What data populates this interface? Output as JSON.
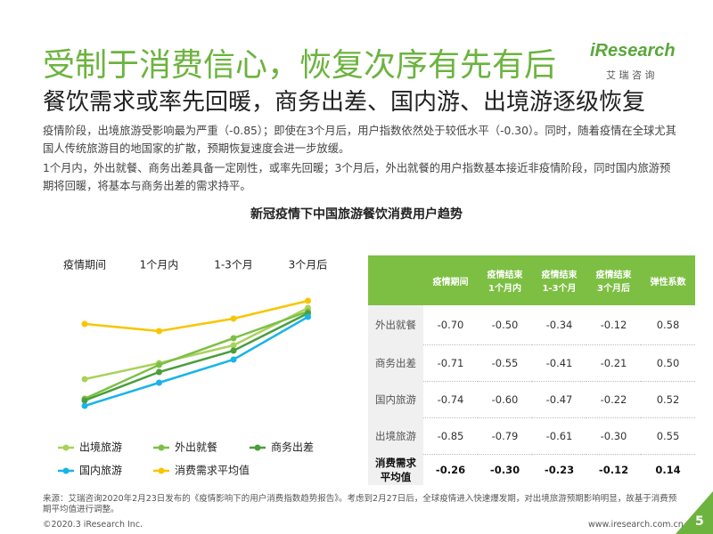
{
  "header": {
    "title": "受制于消费信心，恢复次序有先有后",
    "subtitle": "餐饮需求或率先回暖，商务出差、国内游、出境游逐级恢复",
    "logo": "iResearch",
    "logo_sub": "艾 瑞 咨 询"
  },
  "body": [
    "疫情阶段，出境旅游受影响最为严重（-0.85）；即使在3个月后，用户指数依然处于较低水平（-0.30）。同时，随着疫情在全球尤其国人传统旅游目的地国家的扩散，预期恢复速度会进一步放缓。",
    "1个月内，外出就餐、商务出差具备一定刚性，或率先回暖；3个月后，外出就餐的用户指数基本接近非疫情阶段，同时国内旅游预期将回暖，将基本与商务出差的需求持平。"
  ],
  "chart_data": {
    "type": "line",
    "title": "新冠疫情下中国旅游餐饮消费用户趋势",
    "categories": [
      "疫情期间",
      "1个月内",
      "1-3个月",
      "3个月后"
    ],
    "ylim": [
      -0.8,
      -0.05
    ],
    "series": [
      {
        "name": "出境旅游",
        "color": "#a9d25c",
        "values": [
          -0.56,
          -0.47,
          -0.37,
          -0.16
        ]
      },
      {
        "name": "外出就餐",
        "color": "#7cbf45",
        "values": [
          -0.67,
          -0.48,
          -0.33,
          -0.18
        ]
      },
      {
        "name": "商务出差",
        "color": "#4a9e3c",
        "values": [
          -0.68,
          -0.52,
          -0.4,
          -0.19
        ]
      },
      {
        "name": "国内旅游",
        "color": "#19b4e8",
        "values": [
          -0.71,
          -0.58,
          -0.45,
          -0.21
        ]
      },
      {
        "name": "消费需求平均值",
        "color": "#f7c600",
        "values": [
          -0.25,
          -0.29,
          -0.22,
          -0.12
        ]
      }
    ]
  },
  "table": {
    "header": [
      "疫情期间",
      "疫情结束\n1个月内",
      "疫情结束\n1-3个月",
      "疫情结束\n3个月后",
      "弹性系数"
    ],
    "rows": [
      [
        "外出就餐",
        "-0.70",
        "-0.50",
        "-0.34",
        "-0.12",
        "0.58"
      ],
      [
        "商务出差",
        "-0.71",
        "-0.55",
        "-0.41",
        "-0.21",
        "0.50"
      ],
      [
        "国内旅游",
        "-0.74",
        "-0.60",
        "-0.47",
        "-0.22",
        "0.52"
      ],
      [
        "出境旅游",
        "-0.85",
        "-0.79",
        "-0.61",
        "-0.30",
        "0.55"
      ],
      [
        "消费需求\n平均值",
        "-0.26",
        "-0.30",
        "-0.23",
        "-0.12",
        "0.14"
      ]
    ]
  },
  "footer": {
    "source": "来源：艾瑞咨询2020年2月23日发布的《疫情影响下的用户消费指数趋势报告》。考虑到2月27日后，全球疫情进入快速爆发期，对出境旅游预期影响明显，故基于消费预期平均值进行调整。",
    "copyright": "©2020.3 iResearch Inc.",
    "url": "www.iresearch.com.cn",
    "page": "5"
  }
}
